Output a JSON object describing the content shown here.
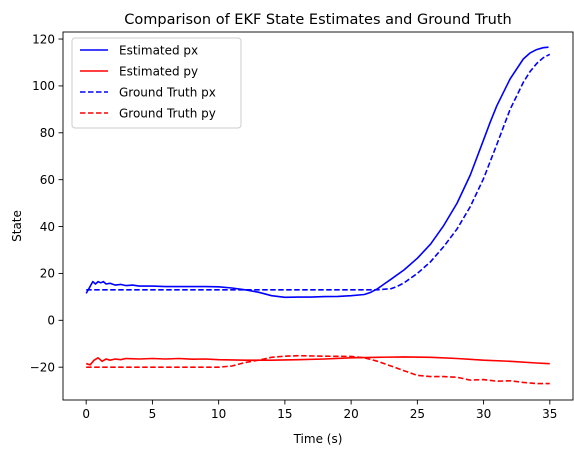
{
  "chart_data": {
    "type": "line",
    "title": "Comparison of EKF State Estimates and Ground Truth",
    "xlabel": "Time (s)",
    "ylabel": "State",
    "xlim": [
      -1.75,
      36.75
    ],
    "ylim": [
      -34.0,
      123.0
    ],
    "x_ticks": [
      0,
      5,
      10,
      15,
      20,
      25,
      30,
      35
    ],
    "y_ticks": [
      -20,
      0,
      20,
      40,
      60,
      80,
      100,
      120
    ],
    "x_tick_labels": [
      "0",
      "5",
      "10",
      "15",
      "20",
      "25",
      "30",
      "35"
    ],
    "y_tick_labels": [
      "−20",
      "0",
      "20",
      "40",
      "60",
      "80",
      "100",
      "120"
    ],
    "grid": false,
    "legend_position": "top-left",
    "series": [
      {
        "name": "Estimated px",
        "color": "#0000ff",
        "linestyle": "solid",
        "x": [
          0,
          0.3,
          0.5,
          0.7,
          0.9,
          1.1,
          1.3,
          1.5,
          1.8,
          2.2,
          2.6,
          3,
          3.5,
          4,
          5,
          6,
          7,
          8,
          9,
          10,
          11,
          12,
          13,
          14,
          15,
          16,
          17,
          18,
          19,
          20,
          21,
          21.5,
          22,
          22.5,
          23,
          24,
          25,
          26,
          27,
          28,
          29,
          30,
          30.5,
          31,
          32,
          33,
          33.5,
          34,
          34.5,
          34.9
        ],
        "y": [
          11.5,
          14.5,
          16.5,
          15.5,
          16.5,
          16,
          16.5,
          15.5,
          15.8,
          15,
          15.3,
          14.8,
          15,
          14.6,
          14.6,
          14.4,
          14.4,
          14.4,
          14.4,
          14.3,
          13.8,
          13,
          12,
          10.5,
          9.8,
          9.9,
          9.9,
          10.1,
          10.2,
          10.5,
          11,
          12,
          13.5,
          15.5,
          17.5,
          21.5,
          26.5,
          32.5,
          40.5,
          50,
          62,
          77,
          84.5,
          91.5,
          103,
          111.5,
          114,
          115.5,
          116.3,
          116.5
        ]
      },
      {
        "name": "Estimated py",
        "color": "#ff0000",
        "linestyle": "solid",
        "x": [
          0,
          0.3,
          0.6,
          0.9,
          1.2,
          1.5,
          1.8,
          2.2,
          2.6,
          3,
          4,
          5,
          6,
          7,
          8,
          9,
          10,
          12,
          14,
          16,
          18,
          20,
          22,
          24,
          26,
          28,
          30,
          32,
          34,
          35
        ],
        "y": [
          -18.5,
          -19,
          -17,
          -16,
          -17.5,
          -16.5,
          -17,
          -16.5,
          -16.8,
          -16.3,
          -16.5,
          -16.3,
          -16.5,
          -16.3,
          -16.6,
          -16.5,
          -16.8,
          -17,
          -17,
          -16.8,
          -16.5,
          -16,
          -15.8,
          -15.6,
          -15.8,
          -16.3,
          -17,
          -17.5,
          -18.2,
          -18.5
        ]
      },
      {
        "name": "Ground Truth px",
        "color": "#0000ff",
        "linestyle": "dashed",
        "x": [
          0,
          1,
          5,
          10,
          15,
          20,
          22,
          23,
          23.5,
          24,
          25,
          26,
          27,
          28,
          29,
          30,
          31,
          32,
          33,
          33.5,
          34,
          34.5,
          35
        ],
        "y": [
          13,
          13,
          13,
          13,
          13,
          13,
          13,
          13.5,
          14.5,
          16,
          20,
          25,
          31.5,
          39,
          48.5,
          60.5,
          75,
          90,
          101.5,
          106,
          109.5,
          112,
          113.5
        ]
      },
      {
        "name": "Ground Truth py",
        "color": "#ff0000",
        "linestyle": "dashed",
        "x": [
          0,
          1,
          5,
          10,
          11,
          12,
          13,
          14,
          15,
          16,
          18,
          20,
          21,
          22,
          23,
          24,
          25,
          26,
          27,
          28,
          29,
          30,
          31,
          32,
          33,
          34,
          35
        ],
        "y": [
          -20,
          -20,
          -20,
          -20,
          -19.5,
          -18,
          -17,
          -15.8,
          -15.3,
          -15.1,
          -15.3,
          -15.4,
          -16,
          -17.5,
          -19.5,
          -21.5,
          -23.5,
          -24,
          -24,
          -24.3,
          -25.5,
          -25.3,
          -26,
          -25.8,
          -26.5,
          -27,
          -27
        ]
      }
    ]
  }
}
